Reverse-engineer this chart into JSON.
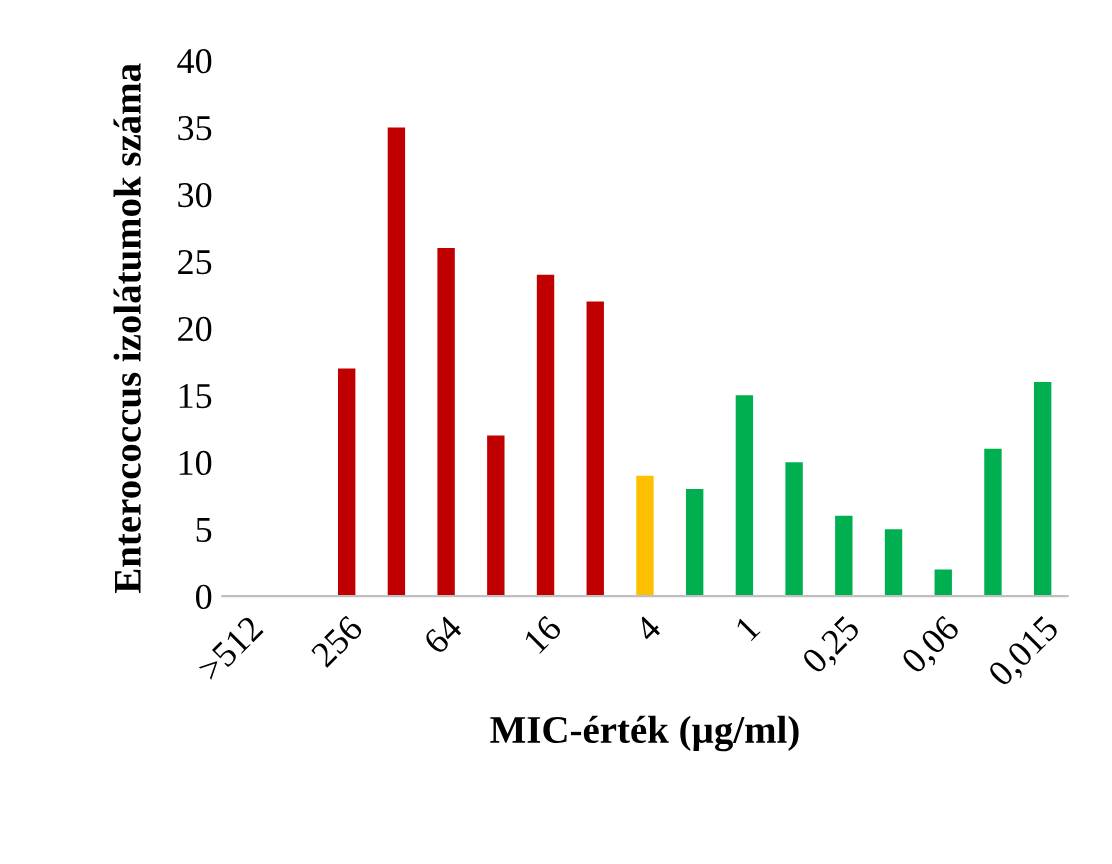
{
  "chart_data": {
    "type": "bar",
    "xlabel": "MIC-érték (µg/ml)",
    "ylabel": "Enterococcus izolátumok száma",
    "categories": [
      ">512",
      null,
      "256",
      null,
      "64",
      null,
      "16",
      null,
      "4",
      null,
      "1",
      null,
      "0,25",
      null,
      "0,06",
      null,
      "0,015"
    ],
    "values": [
      0,
      0,
      17,
      35,
      26,
      12,
      24,
      22,
      9,
      8,
      15,
      10,
      6,
      5,
      2,
      11,
      16
    ],
    "colors": [
      "#c00000",
      "#c00000",
      "#c00000",
      "#c00000",
      "#c00000",
      "#c00000",
      "#c00000",
      "#c00000",
      "#ffc000",
      "#00b050",
      "#00b050",
      "#00b050",
      "#00b050",
      "#00b050",
      "#00b050",
      "#00b050",
      "#00b050"
    ],
    "ylim": [
      0,
      40
    ],
    "yticks": [
      0,
      5,
      10,
      15,
      20,
      25,
      30,
      35,
      40
    ],
    "grid": false,
    "legend": false
  }
}
